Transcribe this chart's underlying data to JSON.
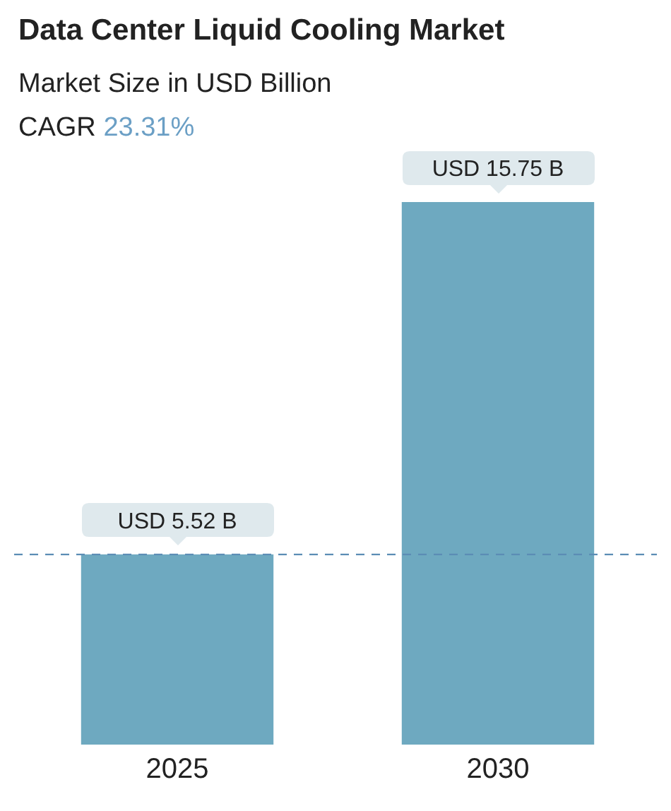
{
  "chart_data": {
    "type": "bar",
    "title": "Data Center Liquid Cooling Market",
    "subtitle": "Market Size in USD Billion",
    "annotations": [
      "CAGR 23.31%"
    ],
    "categories": [
      "2025",
      "2030"
    ],
    "values": [
      5.52,
      15.75
    ],
    "color": "#6ea9c0",
    "value_labels": [
      "USD 5.52 B",
      "USD 15.75 B"
    ],
    "ref_lines": [
      {
        "axis": "y",
        "value": 5.52,
        "color": "#5b8db5",
        "line_style": "dashed"
      }
    ],
    "tick_labels": "x",
    "grid": false,
    "legend": false
  }
}
